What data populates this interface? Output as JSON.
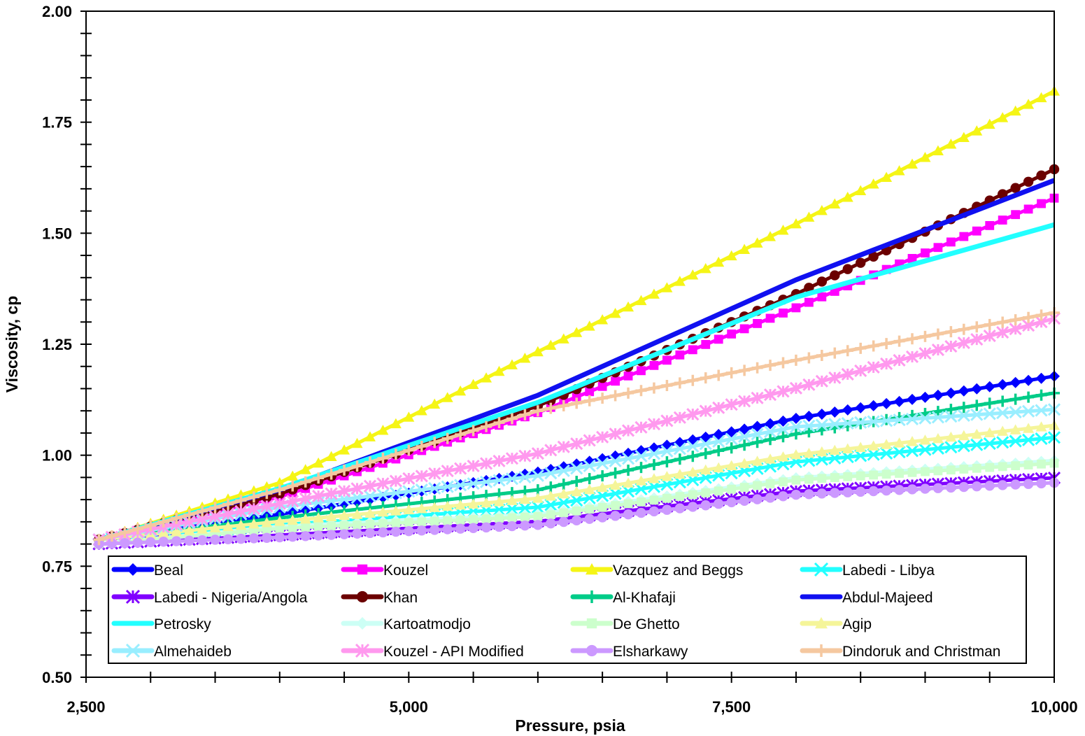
{
  "chart_data": {
    "type": "line",
    "title": "",
    "xlabel": "Pressure, psia",
    "ylabel": "Viscosity, cp",
    "xlim": [
      2500,
      10000
    ],
    "ylim": [
      0.5,
      2.0
    ],
    "x_ticks": [
      2500,
      5000,
      7500,
      10000
    ],
    "x_tick_labels": [
      "2,500",
      "5,000",
      "7,500",
      "10,000"
    ],
    "y_ticks": [
      0.5,
      0.75,
      1.0,
      1.25,
      1.5,
      1.75,
      2.0
    ],
    "y_tick_labels": [
      "0.50",
      "0.75",
      "1.00",
      "1.25",
      "1.50",
      "1.75",
      "2.00"
    ],
    "grid": false,
    "legend_position": "bottom-inside",
    "x": [
      2600,
      4000,
      6000,
      8000,
      10000
    ],
    "series": [
      {
        "name": "Beal",
        "color": "#0000FF",
        "marker": "diamond",
        "values": [
          0.81,
          0.867,
          0.962,
          1.083,
          1.178
        ]
      },
      {
        "name": "Kouzel",
        "color": "#FF00FF",
        "marker": "square",
        "values": [
          0.81,
          0.906,
          1.096,
          1.332,
          1.579
        ]
      },
      {
        "name": "Vazquez and Beggs",
        "color": "#F5F516",
        "marker": "triangle",
        "values": [
          0.81,
          0.938,
          1.233,
          1.521,
          1.82
        ]
      },
      {
        "name": "Labedi - Libya",
        "color": "#22FFFF",
        "marker": "x",
        "values": [
          0.81,
          0.843,
          0.883,
          0.985,
          1.04
        ]
      },
      {
        "name": "Labedi - Nigeria/Angola",
        "color": "#8000FF",
        "marker": "star",
        "values": [
          0.8,
          0.82,
          0.851,
          0.919,
          0.949
        ]
      },
      {
        "name": "Khan",
        "color": "#6B0000",
        "marker": "circle",
        "values": [
          0.81,
          0.913,
          1.111,
          1.363,
          1.644
        ]
      },
      {
        "name": "Al-Khafaji",
        "color": "#00CC88",
        "marker": "plus",
        "values": [
          0.81,
          0.859,
          0.922,
          1.048,
          1.14
        ]
      },
      {
        "name": "Abdul-Majeed",
        "color": "#1010F0",
        "marker": "none",
        "values": [
          0.81,
          0.922,
          1.135,
          1.395,
          1.619
        ]
      },
      {
        "name": "Petrosky",
        "color": "#22FFFF",
        "marker": "none",
        "values": [
          0.81,
          0.925,
          1.119,
          1.356,
          1.519
        ]
      },
      {
        "name": "Kartoatmodjo",
        "color": "#CCFFF5",
        "marker": "diamond",
        "values": [
          0.8,
          0.84,
          0.867,
          0.949,
          0.988
        ]
      },
      {
        "name": "De Ghetto",
        "color": "#CCFFCC",
        "marker": "square",
        "values": [
          0.8,
          0.835,
          0.862,
          0.944,
          0.982
        ]
      },
      {
        "name": "Agip",
        "color": "#F5F599",
        "marker": "triangle",
        "values": [
          0.81,
          0.851,
          0.903,
          1.001,
          1.067
        ]
      },
      {
        "name": "Almehaideb",
        "color": "#99EEFF",
        "marker": "x",
        "values": [
          0.81,
          0.883,
          0.954,
          1.064,
          1.103
        ]
      },
      {
        "name": "Kouzel - API Modified",
        "color": "#FF99EE",
        "marker": "star",
        "values": [
          0.81,
          0.891,
          1.004,
          1.151,
          1.308
        ]
      },
      {
        "name": "Elsharkawy",
        "color": "#CC99FF",
        "marker": "circle",
        "values": [
          0.8,
          0.815,
          0.843,
          0.911,
          0.938
        ]
      },
      {
        "name": "Dindoruk and Christman",
        "color": "#F5C8A0",
        "marker": "plus",
        "values": [
          0.81,
          0.922,
          1.1,
          1.214,
          1.321
        ]
      }
    ]
  }
}
